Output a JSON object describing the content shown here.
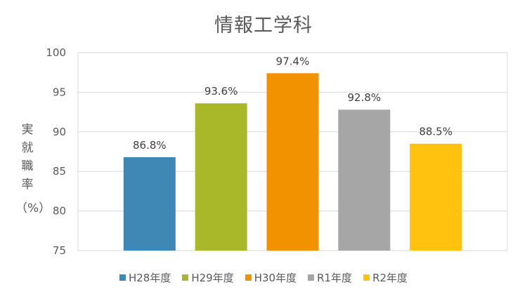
{
  "chart_data": {
    "type": "bar",
    "title": "情報工学科",
    "ylabel": "実就職率",
    "ylabel_unit": "（%）",
    "categories": [
      "H28年度",
      "H29年度",
      "H30年度",
      "R1年度",
      "R2年度"
    ],
    "values": [
      86.8,
      93.6,
      97.4,
      92.8,
      88.5
    ],
    "data_labels": [
      "86.8%",
      "93.6%",
      "97.4%",
      "92.8%",
      "88.5%"
    ],
    "colors": [
      "#3F88B5",
      "#A8B829",
      "#F39200",
      "#A6A6A6",
      "#FFC20E"
    ],
    "ylim": [
      75,
      100
    ],
    "yticks": [
      75,
      80,
      85,
      90,
      95,
      100
    ],
    "grid": true,
    "legend": "bottom"
  }
}
